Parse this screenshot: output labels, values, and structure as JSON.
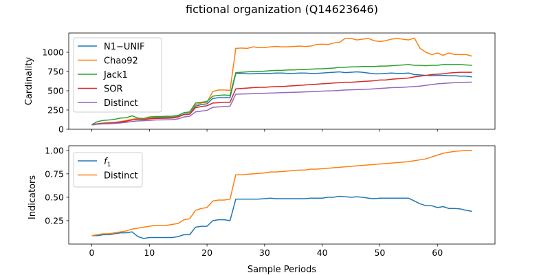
{
  "figure_title": "fictional organization (Q14623646)",
  "chart_data": [
    {
      "type": "line",
      "panel": "top",
      "title": "",
      "xlabel": "",
      "ylabel": "Cardinality",
      "xlim": [
        -4,
        70
      ],
      "ylim": [
        0,
        1250
      ],
      "xticks": [
        0,
        10,
        20,
        30,
        40,
        50,
        60
      ],
      "yticks": [
        0,
        250,
        500,
        750,
        1000
      ],
      "show_xtick_labels": false,
      "grid": false,
      "legend_position": "upper-left",
      "x": [
        0,
        1,
        2,
        3,
        4,
        5,
        6,
        7,
        8,
        9,
        10,
        11,
        12,
        13,
        14,
        15,
        16,
        17,
        18,
        19,
        20,
        21,
        22,
        23,
        24,
        25,
        26,
        27,
        28,
        29,
        30,
        31,
        32,
        33,
        34,
        35,
        36,
        37,
        38,
        39,
        40,
        41,
        42,
        43,
        44,
        45,
        46,
        47,
        48,
        49,
        50,
        51,
        52,
        53,
        54,
        55,
        56,
        57,
        58,
        59,
        60,
        61,
        62,
        63,
        64,
        65,
        66
      ],
      "series": [
        {
          "name": "N1−UNIF",
          "color": "#1f77b4",
          "values": [
            60,
            68,
            75,
            78,
            82,
            92,
            105,
            125,
            135,
            135,
            145,
            150,
            152,
            153,
            155,
            165,
            195,
            200,
            300,
            320,
            330,
            400,
            410,
            410,
            410,
            725,
            725,
            720,
            720,
            725,
            725,
            725,
            730,
            730,
            725,
            725,
            730,
            730,
            725,
            725,
            730,
            735,
            740,
            745,
            735,
            740,
            745,
            740,
            730,
            720,
            720,
            725,
            730,
            725,
            725,
            730,
            710,
            705,
            700,
            695,
            700,
            700,
            695,
            695,
            690,
            690,
            680
          ]
        },
        {
          "name": "Chao92",
          "color": "#ff7f0e",
          "values": [
            60,
            70,
            80,
            85,
            90,
            100,
            115,
            130,
            140,
            135,
            145,
            160,
            162,
            163,
            165,
            180,
            215,
            220,
            320,
            340,
            350,
            490,
            510,
            510,
            505,
            1050,
            1055,
            1050,
            1070,
            1060,
            1060,
            1070,
            1075,
            1070,
            1070,
            1075,
            1080,
            1075,
            1080,
            1100,
            1105,
            1100,
            1120,
            1130,
            1180,
            1180,
            1160,
            1170,
            1180,
            1150,
            1140,
            1150,
            1170,
            1180,
            1170,
            1160,
            1185,
            1050,
            1000,
            970,
            990,
            960,
            990,
            970,
            970,
            970,
            950
          ]
        },
        {
          "name": "Jack1",
          "color": "#2ca02c",
          "values": [
            60,
            100,
            115,
            120,
            130,
            145,
            150,
            175,
            145,
            140,
            160,
            165,
            165,
            168,
            170,
            180,
            215,
            225,
            340,
            350,
            360,
            430,
            440,
            445,
            440,
            735,
            740,
            745,
            750,
            750,
            755,
            760,
            765,
            765,
            770,
            770,
            775,
            775,
            780,
            785,
            785,
            790,
            795,
            805,
            805,
            810,
            810,
            815,
            815,
            815,
            820,
            820,
            825,
            830,
            835,
            840,
            830,
            830,
            825,
            830,
            830,
            840,
            840,
            840,
            840,
            835,
            830
          ]
        },
        {
          "name": "SOR",
          "color": "#d62728",
          "values": [
            60,
            70,
            78,
            82,
            85,
            95,
            105,
            120,
            130,
            125,
            135,
            140,
            142,
            143,
            145,
            160,
            190,
            195,
            280,
            295,
            305,
            340,
            345,
            350,
            350,
            525,
            530,
            535,
            540,
            545,
            545,
            550,
            555,
            555,
            560,
            565,
            570,
            575,
            580,
            585,
            590,
            595,
            600,
            605,
            610,
            610,
            615,
            620,
            625,
            630,
            640,
            640,
            650,
            655,
            660,
            665,
            680,
            690,
            700,
            710,
            715,
            720,
            730,
            735,
            740,
            740,
            740
          ]
        },
        {
          "name": "Distinct",
          "color": "#9467bd",
          "values": [
            55,
            65,
            70,
            72,
            76,
            82,
            90,
            100,
            108,
            110,
            115,
            120,
            122,
            123,
            125,
            135,
            160,
            170,
            225,
            235,
            245,
            285,
            290,
            295,
            300,
            455,
            458,
            460,
            462,
            465,
            468,
            470,
            472,
            475,
            478,
            480,
            482,
            485,
            488,
            490,
            495,
            498,
            500,
            505,
            510,
            512,
            515,
            518,
            520,
            525,
            530,
            535,
            540,
            542,
            545,
            550,
            555,
            560,
            570,
            580,
            590,
            595,
            600,
            605,
            608,
            610,
            612
          ]
        }
      ]
    },
    {
      "type": "line",
      "panel": "bottom",
      "title": "",
      "xlabel": "Sample Periods",
      "ylabel": "Indicators",
      "xlim": [
        -4,
        70
      ],
      "ylim": [
        0,
        1.05
      ],
      "xticks": [
        0,
        10,
        20,
        30,
        40,
        50,
        60
      ],
      "yticks": [
        0.25,
        0.5,
        0.75,
        1.0
      ],
      "grid": false,
      "legend_position": "upper-left",
      "x": [
        0,
        1,
        2,
        3,
        4,
        5,
        6,
        7,
        8,
        9,
        10,
        11,
        12,
        13,
        14,
        15,
        16,
        17,
        18,
        19,
        20,
        21,
        22,
        23,
        24,
        25,
        26,
        27,
        28,
        29,
        30,
        31,
        32,
        33,
        34,
        35,
        36,
        37,
        38,
        39,
        40,
        41,
        42,
        43,
        44,
        45,
        46,
        47,
        48,
        49,
        50,
        51,
        52,
        53,
        54,
        55,
        56,
        57,
        58,
        59,
        60,
        61,
        62,
        63,
        64,
        65,
        66
      ],
      "series": [
        {
          "name": "f1",
          "name_base": "f",
          "name_sub": "1",
          "color": "#1f77b4",
          "values": [
            0.09,
            0.09,
            0.1,
            0.1,
            0.11,
            0.12,
            0.12,
            0.13,
            0.08,
            0.06,
            0.07,
            0.07,
            0.07,
            0.07,
            0.07,
            0.08,
            0.1,
            0.1,
            0.18,
            0.19,
            0.19,
            0.25,
            0.26,
            0.26,
            0.25,
            0.48,
            0.48,
            0.48,
            0.48,
            0.48,
            0.485,
            0.49,
            0.485,
            0.485,
            0.485,
            0.485,
            0.485,
            0.485,
            0.49,
            0.49,
            0.49,
            0.5,
            0.5,
            0.51,
            0.505,
            0.5,
            0.505,
            0.5,
            0.49,
            0.485,
            0.49,
            0.49,
            0.49,
            0.49,
            0.49,
            0.49,
            0.46,
            0.43,
            0.41,
            0.41,
            0.39,
            0.4,
            0.38,
            0.38,
            0.375,
            0.36,
            0.35
          ]
        },
        {
          "name": "Distinct",
          "color": "#ff7f0e",
          "values": [
            0.09,
            0.1,
            0.11,
            0.11,
            0.12,
            0.13,
            0.14,
            0.16,
            0.17,
            0.18,
            0.19,
            0.2,
            0.2,
            0.2,
            0.21,
            0.22,
            0.26,
            0.27,
            0.36,
            0.38,
            0.39,
            0.46,
            0.47,
            0.47,
            0.48,
            0.74,
            0.74,
            0.745,
            0.75,
            0.755,
            0.76,
            0.77,
            0.77,
            0.775,
            0.78,
            0.785,
            0.79,
            0.79,
            0.8,
            0.8,
            0.805,
            0.81,
            0.815,
            0.82,
            0.825,
            0.83,
            0.835,
            0.84,
            0.845,
            0.85,
            0.855,
            0.86,
            0.865,
            0.87,
            0.875,
            0.88,
            0.89,
            0.9,
            0.91,
            0.93,
            0.95,
            0.97,
            0.98,
            0.99,
            0.995,
            1.0,
            1.0
          ]
        }
      ]
    }
  ]
}
